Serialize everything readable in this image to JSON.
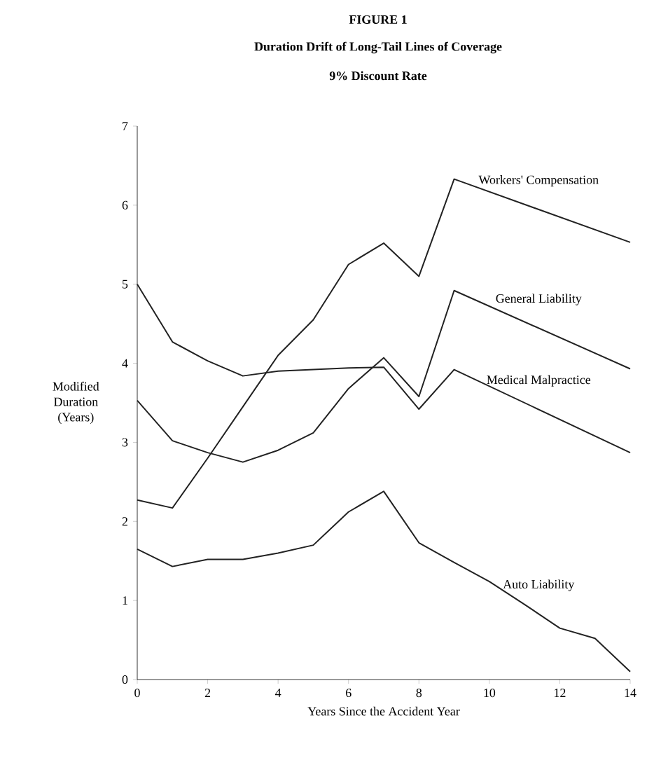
{
  "chart_data": {
    "type": "line",
    "title": "FIGURE 1",
    "subtitle": "Duration Drift of Long-Tail Lines of Coverage",
    "annotations": [
      "9% Discount Rate"
    ],
    "xlabel": "Years Since the Accident Year",
    "ylabel": "Modified Duration (Years)",
    "xlim": [
      0,
      14
    ],
    "ylim": [
      0,
      7
    ],
    "xticks": [
      0,
      2,
      4,
      6,
      8,
      10,
      12,
      14
    ],
    "yticks": [
      0,
      1,
      2,
      3,
      4,
      5,
      6,
      7
    ],
    "series": [
      {
        "name": "Workers' Compensation",
        "color": "#222222",
        "x": [
          0,
          1,
          2,
          3,
          4,
          5,
          6,
          7,
          8,
          9,
          14
        ],
        "values": [
          2.27,
          2.17,
          2.8,
          3.45,
          4.1,
          4.55,
          5.25,
          5.52,
          5.1,
          6.33,
          5.53
        ]
      },
      {
        "name": "General Liability",
        "color": "#222222",
        "x": [
          0,
          1,
          2,
          3,
          4,
          5,
          6,
          7,
          8,
          9,
          14
        ],
        "values": [
          3.53,
          3.02,
          2.87,
          2.75,
          2.9,
          3.12,
          3.68,
          4.07,
          3.58,
          4.92,
          3.93
        ]
      },
      {
        "name": "Medical Malpractice",
        "color": "#222222",
        "x": [
          0,
          1,
          2,
          3,
          4,
          5,
          6,
          7,
          8,
          9,
          14
        ],
        "values": [
          5.0,
          4.27,
          4.03,
          3.84,
          3.9,
          3.92,
          3.94,
          3.95,
          3.42,
          3.92,
          2.87
        ]
      },
      {
        "name": "Auto Liability",
        "color": "#222222",
        "x": [
          0,
          1,
          2,
          3,
          4,
          5,
          6,
          7,
          8,
          9,
          10,
          11,
          12,
          13,
          14
        ],
        "values": [
          1.65,
          1.43,
          1.52,
          1.52,
          1.6,
          1.7,
          2.12,
          2.38,
          1.73,
          1.48,
          1.24,
          0.95,
          0.65,
          0.52,
          0.1
        ]
      }
    ]
  }
}
